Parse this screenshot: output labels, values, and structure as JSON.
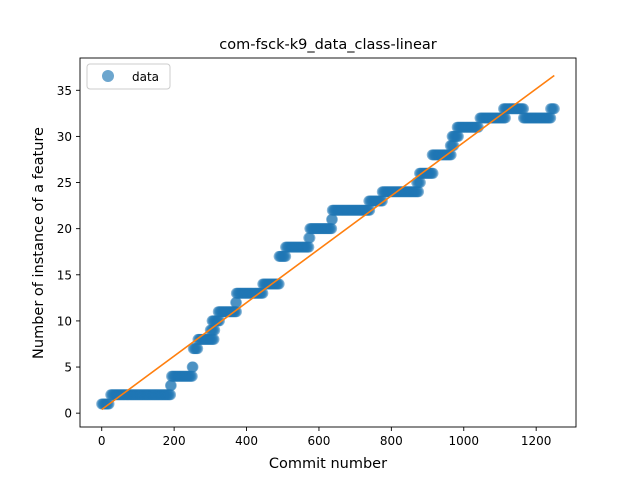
{
  "chart_data": {
    "type": "scatter",
    "title": "com-fsck-k9_data_class-linear",
    "xlabel": "Commit number",
    "ylabel": "Number of instance of a feature",
    "xlim": [
      -60,
      1310
    ],
    "ylim": [
      -1.5,
      38.5
    ],
    "xticks": [
      0,
      200,
      400,
      600,
      800,
      1000,
      1200
    ],
    "yticks": [
      0,
      5,
      10,
      15,
      20,
      25,
      30,
      35
    ],
    "grid": false,
    "legend_position": "top-left",
    "colors": {
      "scatter": "#1f77b4",
      "fit": "#ff7f0e"
    },
    "series": [
      {
        "name": "data",
        "kind": "scatter-steps",
        "steps": [
          {
            "x0": 0,
            "x1": 20,
            "y": 1
          },
          {
            "x0": 25,
            "x1": 190,
            "y": 2
          },
          {
            "x0": 190,
            "x1": 192,
            "y": 3
          },
          {
            "x0": 193,
            "x1": 250,
            "y": 4
          },
          {
            "x0": 250,
            "x1": 252,
            "y": 5
          },
          {
            "x0": 253,
            "x1": 265,
            "y": 7
          },
          {
            "x0": 266,
            "x1": 310,
            "y": 8
          },
          {
            "x0": 300,
            "x1": 312,
            "y": 9
          },
          {
            "x0": 305,
            "x1": 325,
            "y": 10
          },
          {
            "x0": 322,
            "x1": 372,
            "y": 11
          },
          {
            "x0": 370,
            "x1": 372,
            "y": 12
          },
          {
            "x0": 372,
            "x1": 445,
            "y": 13
          },
          {
            "x0": 445,
            "x1": 490,
            "y": 14
          },
          {
            "x0": 490,
            "x1": 508,
            "y": 17
          },
          {
            "x0": 508,
            "x1": 572,
            "y": 18
          },
          {
            "x0": 572,
            "x1": 575,
            "y": 19
          },
          {
            "x0": 575,
            "x1": 635,
            "y": 20
          },
          {
            "x0": 635,
            "x1": 637,
            "y": 21
          },
          {
            "x0": 637,
            "x1": 740,
            "y": 22
          },
          {
            "x0": 738,
            "x1": 775,
            "y": 23
          },
          {
            "x0": 775,
            "x1": 875,
            "y": 24
          },
          {
            "x0": 870,
            "x1": 880,
            "y": 25
          },
          {
            "x0": 878,
            "x1": 915,
            "y": 26
          },
          {
            "x0": 913,
            "x1": 965,
            "y": 28
          },
          {
            "x0": 963,
            "x1": 972,
            "y": 29
          },
          {
            "x0": 968,
            "x1": 985,
            "y": 30
          },
          {
            "x0": 982,
            "x1": 1040,
            "y": 31
          },
          {
            "x0": 1045,
            "x1": 1115,
            "y": 32
          },
          {
            "x0": 1110,
            "x1": 1165,
            "y": 33
          },
          {
            "x0": 1165,
            "x1": 1240,
            "y": 32
          },
          {
            "x0": 1240,
            "x1": 1250,
            "y": 33
          }
        ]
      },
      {
        "kind": "line",
        "x": [
          0,
          1250
        ],
        "y": [
          0.4,
          36.6
        ]
      }
    ]
  }
}
